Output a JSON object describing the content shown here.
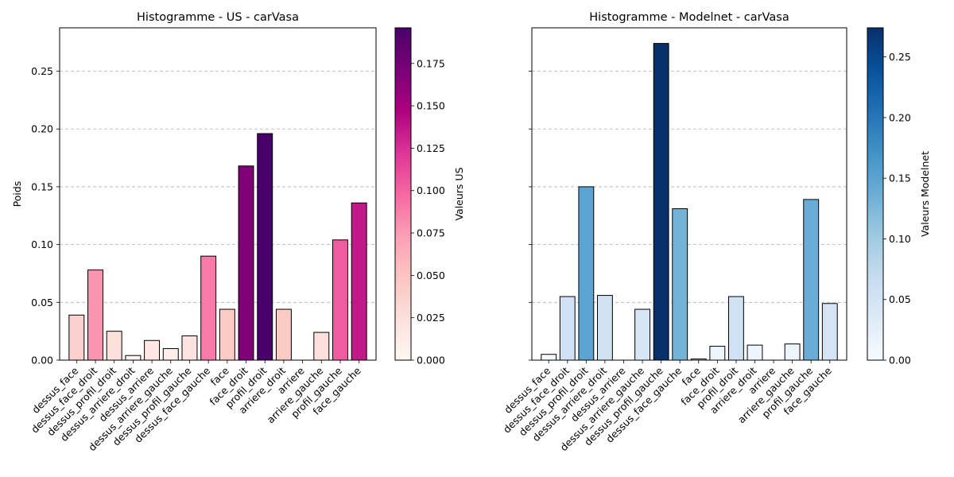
{
  "chart_data": [
    {
      "type": "bar",
      "title": "Histogramme - US - carVasa",
      "ylabel": "Poids",
      "xlabel": "",
      "ylim": [
        0,
        0.2875
      ],
      "yticks": [
        "0.00",
        "0.05",
        "0.10",
        "0.15",
        "0.20",
        "0.25"
      ],
      "grid": "y-dashed",
      "colormap": "RdPu",
      "colorbar": {
        "label": "Valeurs US",
        "range": [
          0,
          0.196
        ],
        "ticks": [
          "0.000",
          "0.025",
          "0.050",
          "0.075",
          "0.100",
          "0.125",
          "0.150",
          "0.175"
        ],
        "stops": [
          "#fff7f3",
          "#fde0dd",
          "#fcc5c0",
          "#fa9fb5",
          "#f768a1",
          "#dd3497",
          "#ae017e",
          "#7a0177",
          "#49006a"
        ]
      },
      "categories": [
        "dessus_face",
        "dessus_face_droit",
        "dessus_profil_droit",
        "dessus_arriere_droit",
        "dessus_arriere",
        "dessus_arriere_gauche",
        "dessus_profil_gauche",
        "dessus_face_gauche",
        "face",
        "face_droit",
        "profil_droit",
        "arriere_droit",
        "arriere",
        "arriere_gauche",
        "profil_gauche",
        "face_gauche"
      ],
      "values": [
        0.039,
        0.078,
        0.025,
        0.004,
        0.017,
        0.01,
        0.021,
        0.09,
        0.044,
        0.168,
        0.196,
        0.044,
        0.0,
        0.024,
        0.104,
        0.136
      ]
    },
    {
      "type": "bar",
      "title": "Histogramme - Modelnet - carVasa",
      "ylabel": "",
      "xlabel": "",
      "ylim": [
        0,
        0.2875
      ],
      "grid": "y-dashed",
      "colormap": "Blues",
      "colorbar": {
        "label": "Valeurs Modelnet",
        "range": [
          0,
          0.274
        ],
        "ticks": [
          "0.00",
          "0.05",
          "0.10",
          "0.15",
          "0.20",
          "0.25"
        ],
        "stops": [
          "#f7fbff",
          "#deebf7",
          "#c6dbef",
          "#9ecae1",
          "#6baed6",
          "#4292c6",
          "#2171b5",
          "#08519c",
          "#08306b"
        ]
      },
      "categories": [
        "dessus_face",
        "dessus_face_droit",
        "dessus_profil_droit",
        "dessus_arriere_droit",
        "dessus_arriere",
        "dessus_arriere_gauche",
        "dessus_profil_gauche",
        "dessus_face_gauche",
        "face",
        "face_droit",
        "profil_droit",
        "arriere_droit",
        "arriere",
        "arriere_gauche",
        "profil_gauche",
        "face_gauche"
      ],
      "values": [
        0.005,
        0.055,
        0.15,
        0.056,
        0.0,
        0.044,
        0.274,
        0.131,
        0.001,
        0.012,
        0.055,
        0.013,
        0.0,
        0.014,
        0.139,
        0.049
      ]
    }
  ]
}
